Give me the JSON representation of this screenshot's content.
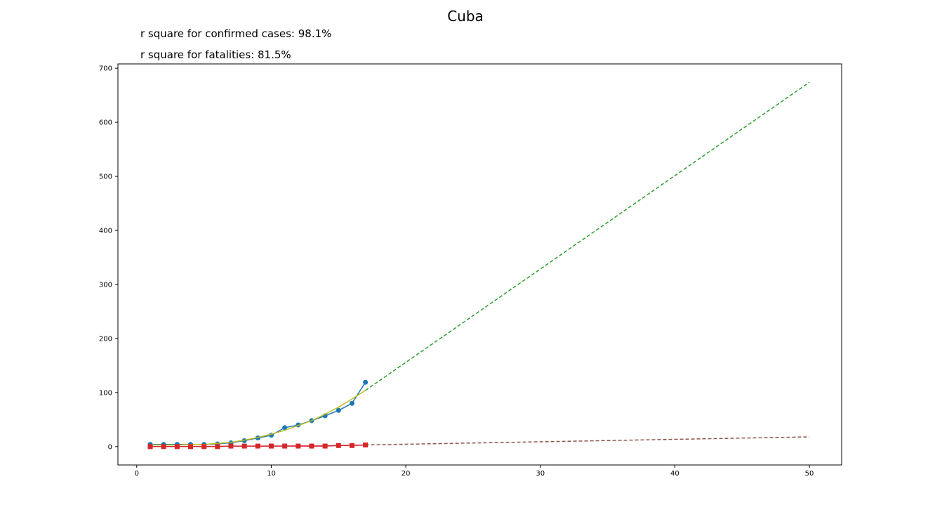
{
  "chart_data": {
    "type": "line",
    "title": "Cuba",
    "annotations": [
      "r square for confirmed cases: 98.1%",
      "r square for fatalities: 81.5%"
    ],
    "xlabel": "",
    "ylabel": "",
    "xlim": [
      -1.4,
      52.4
    ],
    "ylim": [
      -34,
      708
    ],
    "x_ticks": [
      0,
      10,
      20,
      30,
      40,
      50
    ],
    "y_ticks": [
      0,
      100,
      200,
      300,
      400,
      500,
      600,
      700
    ],
    "grid": false,
    "legend": "none",
    "series": [
      {
        "role": "confirmed-observed",
        "style": "solid-circle-markers",
        "color": "#1f77b4",
        "x": [
          1,
          2,
          3,
          4,
          5,
          6,
          7,
          8,
          9,
          10,
          11,
          12,
          13,
          14,
          15,
          16,
          17
        ],
        "y": [
          4,
          4,
          4,
          4,
          4,
          5,
          7,
          11,
          16,
          21,
          35,
          40,
          48,
          57,
          67,
          80,
          119
        ]
      },
      {
        "role": "confirmed-fit",
        "style": "solid",
        "color": "#bcbd22",
        "x": [
          1,
          2,
          3,
          4,
          5,
          6,
          7,
          8,
          9,
          10,
          11,
          12,
          13,
          14,
          15,
          16,
          17
        ],
        "y": [
          3,
          3,
          3,
          4,
          4,
          6,
          8,
          12,
          17,
          23,
          30,
          39,
          48,
          60,
          73,
          88,
          104
        ]
      },
      {
        "role": "confirmed-projection",
        "style": "dashed",
        "color": "#2ca02c",
        "x": [
          17,
          50
        ],
        "y": [
          104,
          674
        ]
      },
      {
        "role": "fatalities-observed",
        "style": "solid-square-markers",
        "color": "#d62728",
        "x": [
          1,
          2,
          3,
          4,
          5,
          6,
          7,
          8,
          9,
          10,
          11,
          12,
          13,
          14,
          15,
          16,
          17
        ],
        "y": [
          0,
          0,
          0,
          0,
          0,
          0,
          1,
          1,
          1,
          1,
          1,
          1,
          1,
          1,
          2,
          2,
          3
        ]
      },
      {
        "role": "fatalities-fit",
        "style": "solid",
        "color": "#e377c2",
        "x": [
          1,
          5,
          10,
          15,
          17
        ],
        "y": [
          0,
          0.5,
          1,
          2,
          2.5
        ]
      },
      {
        "role": "fatalities-projection",
        "style": "dashed",
        "color": "#8c564b",
        "x": [
          17,
          50
        ],
        "y": [
          3,
          18
        ]
      }
    ]
  }
}
